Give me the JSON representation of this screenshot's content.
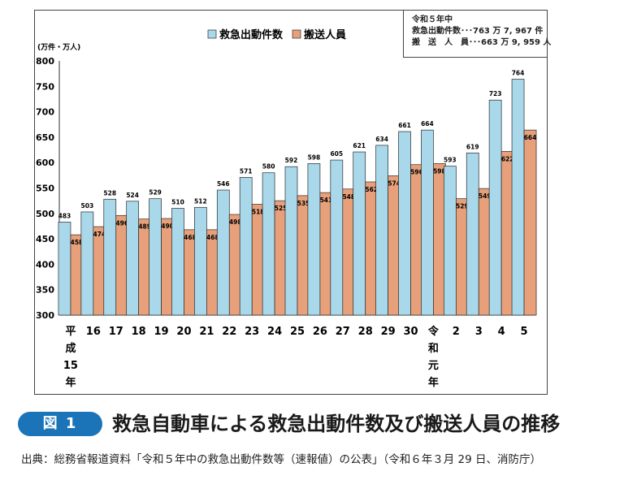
{
  "chart_data": {
    "type": "bar",
    "unit_label": "(万件・万人)",
    "categories": [
      [
        "平",
        "成",
        "15",
        "年"
      ],
      [
        "16"
      ],
      [
        "17"
      ],
      [
        "18"
      ],
      [
        "19"
      ],
      [
        "20"
      ],
      [
        "21"
      ],
      [
        "22"
      ],
      [
        "23"
      ],
      [
        "24"
      ],
      [
        "25"
      ],
      [
        "26"
      ],
      [
        "27"
      ],
      [
        "28"
      ],
      [
        "29"
      ],
      [
        "30"
      ],
      [
        "令",
        "和",
        "元",
        "年"
      ],
      [
        "2"
      ],
      [
        "3"
      ],
      [
        "4"
      ],
      [
        "5"
      ]
    ],
    "series": [
      {
        "name": "救急出動件数",
        "color": "#a8d8ea",
        "values": [
          483,
          503,
          528,
          524,
          529,
          510,
          512,
          546,
          571,
          580,
          592,
          598,
          605,
          621,
          634,
          661,
          664,
          593,
          619,
          723,
          764
        ]
      },
      {
        "name": "搬送人員",
        "color": "#e8a07a",
        "values": [
          458,
          474,
          496,
          489,
          490,
          468,
          468,
          498,
          518,
          525,
          535,
          541,
          548,
          562,
          574,
          596,
          598,
          529,
          549,
          622,
          664
        ]
      }
    ],
    "ylim": [
      300,
      800
    ],
    "yticks": [
      "300",
      "350",
      "400",
      "450",
      "500",
      "550",
      "600",
      "650",
      "700",
      "750",
      "800"
    ]
  },
  "notes": {
    "heading": "令和５年中",
    "line1": "救急出動件数･･･763 万 7, 967 件",
    "line2": "搬　送　人　員･･･663 万 9, 959 人"
  },
  "caption": {
    "badge": "図 1",
    "title": "救急自動車による救急出動件数及び搬送人員の推移"
  },
  "source": "出典：総務省報道資料「令和５年中の救急出動件数等（速報値）の公表」（令和６年３月 29 日、消防庁）"
}
